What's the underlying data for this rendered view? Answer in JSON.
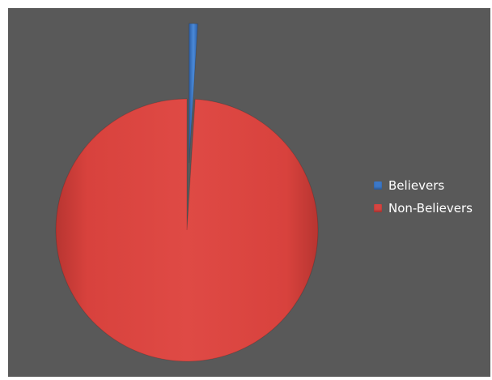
{
  "chart_data": {
    "type": "pie",
    "title": "",
    "exploded": "Believers",
    "slices": [
      {
        "label": "Believers",
        "value": 1,
        "color": "#3c78c8"
      },
      {
        "label": "Non-Believers",
        "value": 99,
        "color": "#d64541"
      }
    ],
    "legend_position": "right",
    "background": "#595959"
  }
}
